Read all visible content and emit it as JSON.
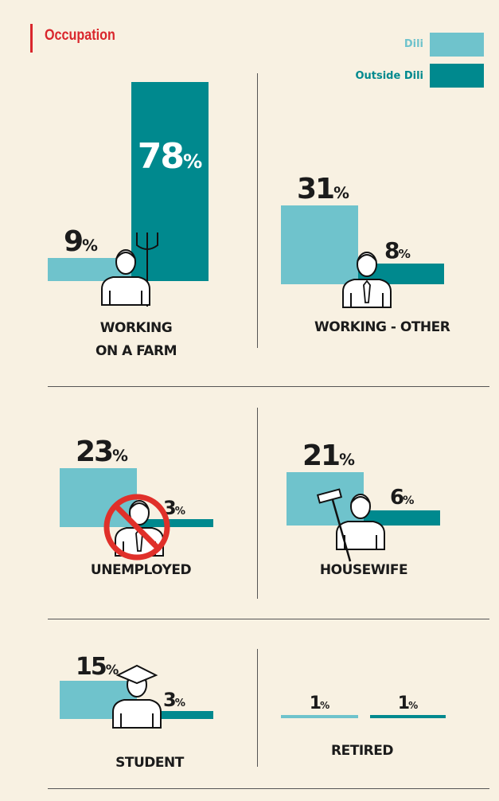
{
  "title": "Occupation",
  "chart_data": [
    {
      "type": "bar",
      "title": "WORKING ON A FARM",
      "series": [
        {
          "name": "Dili",
          "color": "#6fc3cc",
          "values": [
            9
          ],
          "value_labels": [
            "9%"
          ]
        },
        {
          "name": "Outside Dili",
          "color": "#00898e",
          "values": [
            78
          ],
          "value_labels": [
            "78%"
          ]
        }
      ]
    },
    {
      "type": "bar",
      "title": "WORKING - OTHER",
      "series": [
        {
          "name": "Dili",
          "color": "#6fc3cc",
          "values": [
            31
          ],
          "value_labels": [
            "31%"
          ]
        },
        {
          "name": "Outside Dili",
          "color": "#00898e",
          "values": [
            8
          ],
          "value_labels": [
            "8%"
          ]
        }
      ]
    },
    {
      "type": "bar",
      "title": "UNEMPLOYED",
      "series": [
        {
          "name": "Dili",
          "color": "#6fc3cc",
          "values": [
            23
          ],
          "value_labels": [
            "23%"
          ]
        },
        {
          "name": "Outside Dili",
          "color": "#00898e",
          "values": [
            3
          ],
          "value_labels": [
            "3%"
          ]
        }
      ]
    },
    {
      "type": "bar",
      "title": "HOUSEWIFE",
      "series": [
        {
          "name": "Dili",
          "color": "#6fc3cc",
          "values": [
            21
          ],
          "value_labels": [
            "21%"
          ]
        },
        {
          "name": "Outside Dili",
          "color": "#00898e",
          "values": [
            6
          ],
          "value_labels": [
            "6%"
          ]
        }
      ]
    },
    {
      "type": "bar",
      "title": "STUDENT",
      "series": [
        {
          "name": "Dili",
          "color": "#6fc3cc",
          "values": [
            15
          ],
          "value_labels": [
            "15%"
          ]
        },
        {
          "name": "Outside Dili",
          "color": "#00898e",
          "values": [
            3
          ],
          "value_labels": [
            "3%"
          ]
        }
      ]
    },
    {
      "type": "bar",
      "title": "RETIRED",
      "series": [
        {
          "name": "Dili",
          "color": "#6fc3cc",
          "values": [
            1
          ],
          "value_labels": [
            "1%"
          ]
        },
        {
          "name": "Outside Dili",
          "color": "#00898e",
          "values": [
            1
          ],
          "value_labels": [
            "1%"
          ]
        }
      ]
    }
  ]
}
